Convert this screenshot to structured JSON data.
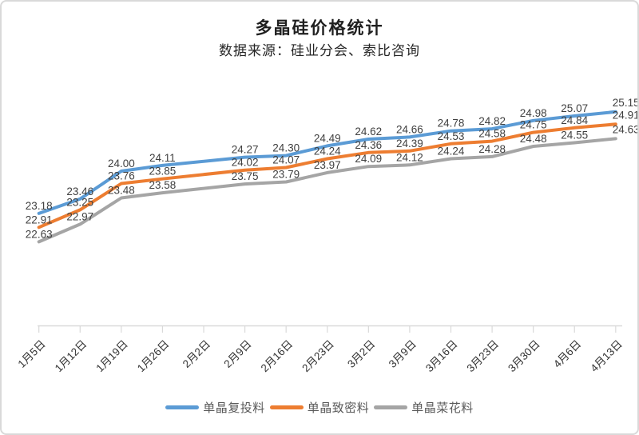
{
  "title": "多晶硅价格统计",
  "subtitle": "数据来源：硅业分会、索比咨询",
  "chart_data": {
    "type": "line",
    "title": "多晶硅价格统计",
    "subtitle": "数据来源：硅业分会、索比咨询",
    "categories": [
      "1月5日",
      "1月12日",
      "1月19日",
      "1月26日",
      "2月2日",
      "2月9日",
      "2月16日",
      "2月23日",
      "3月2日",
      "3月9日",
      "3月16日",
      "3月23日",
      "3月30日",
      "4月6日",
      "4月13日"
    ],
    "series": [
      {
        "name": "单晶复投料",
        "color": "#5B9BD5",
        "values": [
          23.18,
          23.46,
          24.0,
          24.11,
          null,
          24.27,
          24.3,
          24.49,
          24.62,
          24.66,
          24.78,
          24.82,
          24.98,
          25.07,
          25.15
        ]
      },
      {
        "name": "单晶致密料",
        "color": "#ED7D31",
        "values": [
          22.91,
          23.25,
          23.76,
          23.85,
          null,
          24.02,
          24.07,
          24.24,
          24.36,
          24.39,
          24.53,
          24.58,
          24.75,
          24.84,
          24.91
        ]
      },
      {
        "name": "单晶菜花料",
        "color": "#A5A5A5",
        "values": [
          22.63,
          22.97,
          23.48,
          23.58,
          null,
          23.75,
          23.79,
          23.97,
          24.09,
          24.12,
          24.24,
          24.28,
          24.48,
          24.55,
          24.63
        ]
      }
    ],
    "ylim": [
      21,
      26
    ],
    "grid": false,
    "y_axis_visible": false,
    "data_labels": true,
    "data_label_decimals": 2,
    "legend_position": "bottom",
    "axis_color": "#D9D9D9",
    "data_label_color": "#404040",
    "tick_label_color": "#333333",
    "legend_text_color": "#595959"
  }
}
